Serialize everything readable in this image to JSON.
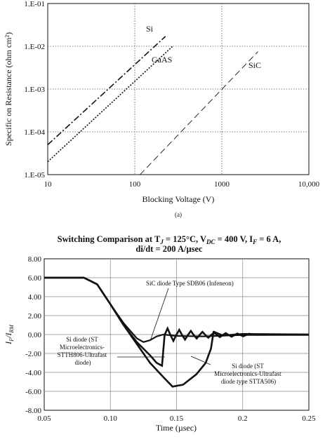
{
  "chart_data": [
    {
      "type": "line",
      "xscale": "log",
      "yscale": "log",
      "xlim": [
        10,
        10000
      ],
      "ylim": [
        1e-05,
        0.1
      ],
      "xlabel": "Blocking Voltage (V)",
      "ylabel": "Specific on Resistance (ohm cm²)",
      "x_ticks": [
        10,
        100,
        1000,
        10000
      ],
      "x_tick_labels": [
        "10",
        "100",
        "1000",
        "10,000"
      ],
      "y_ticks": [
        1e-05,
        0.0001,
        0.001,
        0.01,
        0.1
      ],
      "y_tick_labels": [
        "1.E-05",
        "1.E-04",
        "1.E-03",
        "1.E-02",
        "1.E-01"
      ],
      "caption": "(a)",
      "grid": "dotted",
      "series": [
        {
          "name": "Si",
          "style": "dash-dot",
          "x": [
            10,
            225
          ],
          "y": [
            5e-05,
            0.017
          ]
        },
        {
          "name": "GaAS",
          "style": "dotted",
          "x": [
            10,
            270
          ],
          "y": [
            2e-05,
            0.0098
          ]
        },
        {
          "name": "SiC",
          "style": "long-dash",
          "x": [
            115,
            2600
          ],
          "y": [
            1e-05,
            0.0075
          ]
        }
      ]
    },
    {
      "type": "line",
      "title_line1": "Switching Comparison at T",
      "title_sub1": "J",
      "title_mid1": " = 125°C, V",
      "title_sub2": "DC",
      "title_mid2": " = 400 V, I",
      "title_sub3": "F",
      "title_end1": " = 6 A,",
      "title_line2": "di/dt = 200 A/µsec",
      "xlabel": "Time (µsec)",
      "ylabel_main": "I",
      "ylabel_sub1": "F",
      "ylabel_slash": "/I",
      "ylabel_sub2": "RM",
      "xlim": [
        0.05,
        0.25
      ],
      "ylim": [
        -8,
        8
      ],
      "x_ticks": [
        0.05,
        0.1,
        0.15,
        0.2,
        0.25
      ],
      "x_tick_labels": [
        "0.05",
        "0.10",
        "0.15",
        "0.2",
        "0.25"
      ],
      "y_ticks": [
        8,
        6,
        4,
        2,
        0,
        -2,
        -4,
        -6,
        -8
      ],
      "y_tick_labels": [
        "8.00",
        "6.00",
        "4.00",
        "2.00",
        "0.00",
        "-2.00",
        "-4.00",
        "-6.00",
        "-8.00"
      ],
      "annotations": {
        "sic": "SiC diode Type SDB06 (Infeneon)",
        "si1_l1": "Si diode (ST",
        "si1_l2": "Microelectronics-",
        "si1_l3": "STTH806-Ultrafast",
        "si1_l4": "diode)",
        "si2_l1": "Si diode (ST",
        "si2_l2": "Microelectronics-Ultrafast",
        "si2_l3": "diode type STTA506)"
      },
      "series": [
        {
          "name": "SiC diode Type SDB06 (Infeneon)",
          "x": [
            0.05,
            0.08,
            0.09,
            0.1,
            0.11,
            0.12,
            0.125,
            0.13,
            0.135,
            0.14,
            0.15,
            0.17,
            0.2,
            0.25
          ],
          "y": [
            6.0,
            6.0,
            5.3,
            3.2,
            1.2,
            -0.4,
            -0.8,
            -0.6,
            -0.2,
            0.0,
            -0.15,
            -0.2,
            -0.05,
            -0.05
          ]
        },
        {
          "name": "Si diode (ST Microelectronics-STTH806-Ultrafast diode)",
          "x": [
            0.05,
            0.08,
            0.09,
            0.1,
            0.11,
            0.12,
            0.13,
            0.135,
            0.139,
            0.141,
            0.144,
            0.15,
            0.16,
            0.17,
            0.18,
            0.19,
            0.2,
            0.25
          ],
          "y": [
            6.0,
            6.0,
            5.3,
            3.2,
            1.0,
            -0.8,
            -2.2,
            -3.0,
            -3.3,
            0.7,
            -0.5,
            0.5,
            -0.4,
            0.3,
            -0.2,
            0.1,
            0.0,
            0.0
          ]
        },
        {
          "name": "Si diode (ST Microelectronics-Ultrafast diode type STTA506)",
          "x": [
            0.05,
            0.08,
            0.09,
            0.1,
            0.11,
            0.12,
            0.13,
            0.14,
            0.147,
            0.155,
            0.165,
            0.172,
            0.176,
            0.178,
            0.185,
            0.2,
            0.25
          ],
          "y": [
            6.0,
            6.0,
            5.3,
            3.2,
            1.0,
            -1.0,
            -3.0,
            -4.5,
            -5.5,
            -5.3,
            -4.2,
            -3.0,
            -1.5,
            0.3,
            -0.1,
            0.05,
            0.0
          ]
        }
      ]
    }
  ]
}
